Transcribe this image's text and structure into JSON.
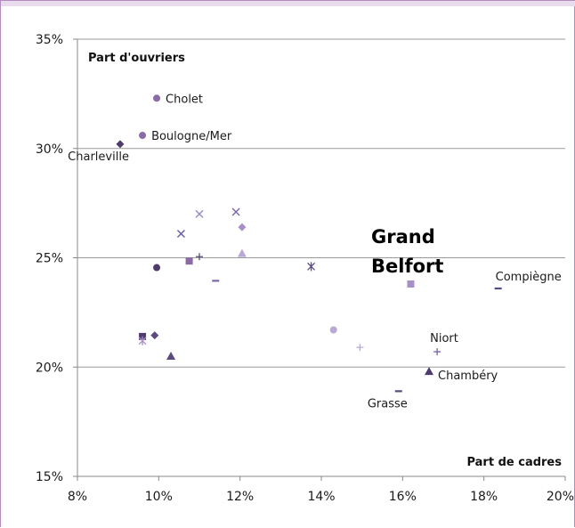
{
  "chart_data": {
    "type": "scatter",
    "title": "",
    "xlabel": "Part de cadres",
    "ylabel": "Part d'ouvriers",
    "xlim": [
      8,
      20
    ],
    "ylim": [
      15,
      35
    ],
    "x_ticks": [
      8,
      10,
      12,
      14,
      16,
      18,
      20
    ],
    "y_ticks": [
      15,
      20,
      25,
      30,
      35
    ],
    "x_tick_labels": [
      "8%",
      "10%",
      "12%",
      "14%",
      "16%",
      "18%",
      "20%"
    ],
    "y_tick_labels": [
      "15%",
      "20%",
      "25%",
      "30%",
      "35%"
    ],
    "grid": "horizontal",
    "highlight": {
      "line1": "Grand",
      "line2": "Belfort",
      "x": 16.2,
      "y": 23.8
    },
    "points": [
      {
        "x": 9.95,
        "y": 32.3,
        "marker": "circle",
        "color": "#8b6aa5",
        "label": "Cholet",
        "label_pos": "right"
      },
      {
        "x": 9.6,
        "y": 30.6,
        "marker": "circle",
        "color": "#8b6aa5",
        "label": "Boulogne/Mer",
        "label_pos": "right"
      },
      {
        "x": 9.05,
        "y": 30.2,
        "marker": "diamond",
        "color": "#4e3a6b",
        "label": "Charleville",
        "label_pos": "below-left"
      },
      {
        "x": 11.0,
        "y": 27.0,
        "marker": "x",
        "color": "#9b86c4",
        "label": ""
      },
      {
        "x": 11.9,
        "y": 27.1,
        "marker": "x",
        "color": "#7b66a8",
        "label": ""
      },
      {
        "x": 10.55,
        "y": 26.1,
        "marker": "x",
        "color": "#6a5a9e",
        "label": ""
      },
      {
        "x": 12.05,
        "y": 26.4,
        "marker": "diamond",
        "color": "#a88fc8",
        "label": ""
      },
      {
        "x": 12.05,
        "y": 25.2,
        "marker": "triangle",
        "color": "#b8a8d6",
        "label": ""
      },
      {
        "x": 11.0,
        "y": 25.05,
        "marker": "plus",
        "color": "#5d4a80",
        "label": ""
      },
      {
        "x": 9.95,
        "y": 24.55,
        "marker": "circle",
        "color": "#4e3a6b",
        "label": ""
      },
      {
        "x": 10.75,
        "y": 24.85,
        "marker": "square",
        "color": "#8b6aa5",
        "label": ""
      },
      {
        "x": 11.4,
        "y": 23.95,
        "marker": "dash",
        "color": "#7b66a8",
        "label": ""
      },
      {
        "x": 13.75,
        "y": 24.6,
        "marker": "asterisk",
        "color": "#5d4a80",
        "label": ""
      },
      {
        "x": 16.2,
        "y": 23.8,
        "marker": "square",
        "color": "#a88fc8",
        "label": ""
      },
      {
        "x": 18.35,
        "y": 23.6,
        "marker": "dash",
        "color": "#5d4a80",
        "label": "Compiègne",
        "label_pos": "above-right"
      },
      {
        "x": 9.6,
        "y": 21.4,
        "marker": "square",
        "color": "#4e3a6b",
        "label": ""
      },
      {
        "x": 9.6,
        "y": 21.2,
        "marker": "asterisk",
        "color": "#a88fc8",
        "label": ""
      },
      {
        "x": 9.9,
        "y": 21.45,
        "marker": "diamond",
        "color": "#5d4a80",
        "label": ""
      },
      {
        "x": 10.3,
        "y": 20.5,
        "marker": "triangle",
        "color": "#5d4a80",
        "label": ""
      },
      {
        "x": 14.3,
        "y": 21.7,
        "marker": "circle",
        "color": "#b8a8d6",
        "label": ""
      },
      {
        "x": 14.95,
        "y": 20.9,
        "marker": "plus",
        "color": "#b8a8d6",
        "label": ""
      },
      {
        "x": 16.85,
        "y": 20.7,
        "marker": "plus",
        "color": "#7b66a8",
        "label": "Niort",
        "label_pos": "above"
      },
      {
        "x": 16.65,
        "y": 19.8,
        "marker": "triangle",
        "color": "#4e3a6b",
        "label": "Chambéry",
        "label_pos": "below-right"
      },
      {
        "x": 15.9,
        "y": 18.9,
        "marker": "dash",
        "color": "#5d4a80",
        "label": "Grasse",
        "label_pos": "below-left"
      }
    ]
  }
}
